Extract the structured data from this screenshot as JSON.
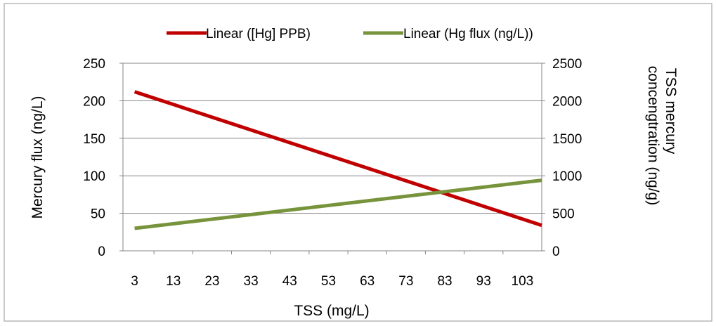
{
  "chart_data": {
    "type": "line",
    "title": "",
    "xlabel": "TSS (mg/L)",
    "ylabel_left": "Mercury flux (ng/L)",
    "ylabel_right_lines": [
      "TSS mercury",
      "concengtration (ng/g)"
    ],
    "x_ticks": [
      3,
      13,
      23,
      33,
      43,
      53,
      63,
      73,
      83,
      93,
      103
    ],
    "xlim": [
      0,
      108
    ],
    "ylim_left": [
      0,
      250
    ],
    "ylim_right": [
      0,
      2500
    ],
    "y_ticks_left": [
      0,
      50,
      100,
      150,
      200,
      250
    ],
    "y_ticks_right": [
      0,
      500,
      1000,
      1500,
      2000,
      2500
    ],
    "grid": "horizontal",
    "legend_position": "top",
    "series": [
      {
        "name": "Linear ([Hg] PPB)",
        "axis": "right",
        "color": "#C00000",
        "x": [
          3,
          108
        ],
        "y": [
          2120,
          340
        ]
      },
      {
        "name": "Linear (Hg flux (ng/L))",
        "axis": "left",
        "color": "#77933C",
        "x": [
          3,
          108
        ],
        "y": [
          30,
          94
        ]
      }
    ]
  }
}
